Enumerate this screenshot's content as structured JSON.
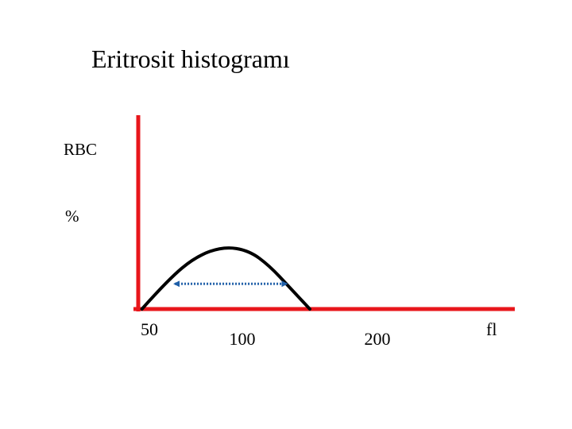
{
  "chart_data": {
    "type": "line",
    "title": "Eritrosit histogramı",
    "ylabel_lines": [
      "RBC",
      "%"
    ],
    "xlabel": "fl",
    "x_ticks": [
      {
        "value": 50,
        "label": "50"
      },
      {
        "value": 100,
        "label": "100"
      },
      {
        "value": 200,
        "label": "200"
      }
    ],
    "series": [
      {
        "color": "#000000",
        "x": [
          46,
          60,
          75,
          90,
          105,
          120,
          135,
          150
        ],
        "y": [
          0,
          35,
          63,
          75,
          70,
          52,
          26,
          0
        ]
      }
    ],
    "width_indicator": {
      "x_start": 62,
      "x_end": 135,
      "y": 35,
      "color": "#1f5fa8",
      "style": "dotted-double-arrow"
    },
    "axis_color": "#e8161b"
  }
}
